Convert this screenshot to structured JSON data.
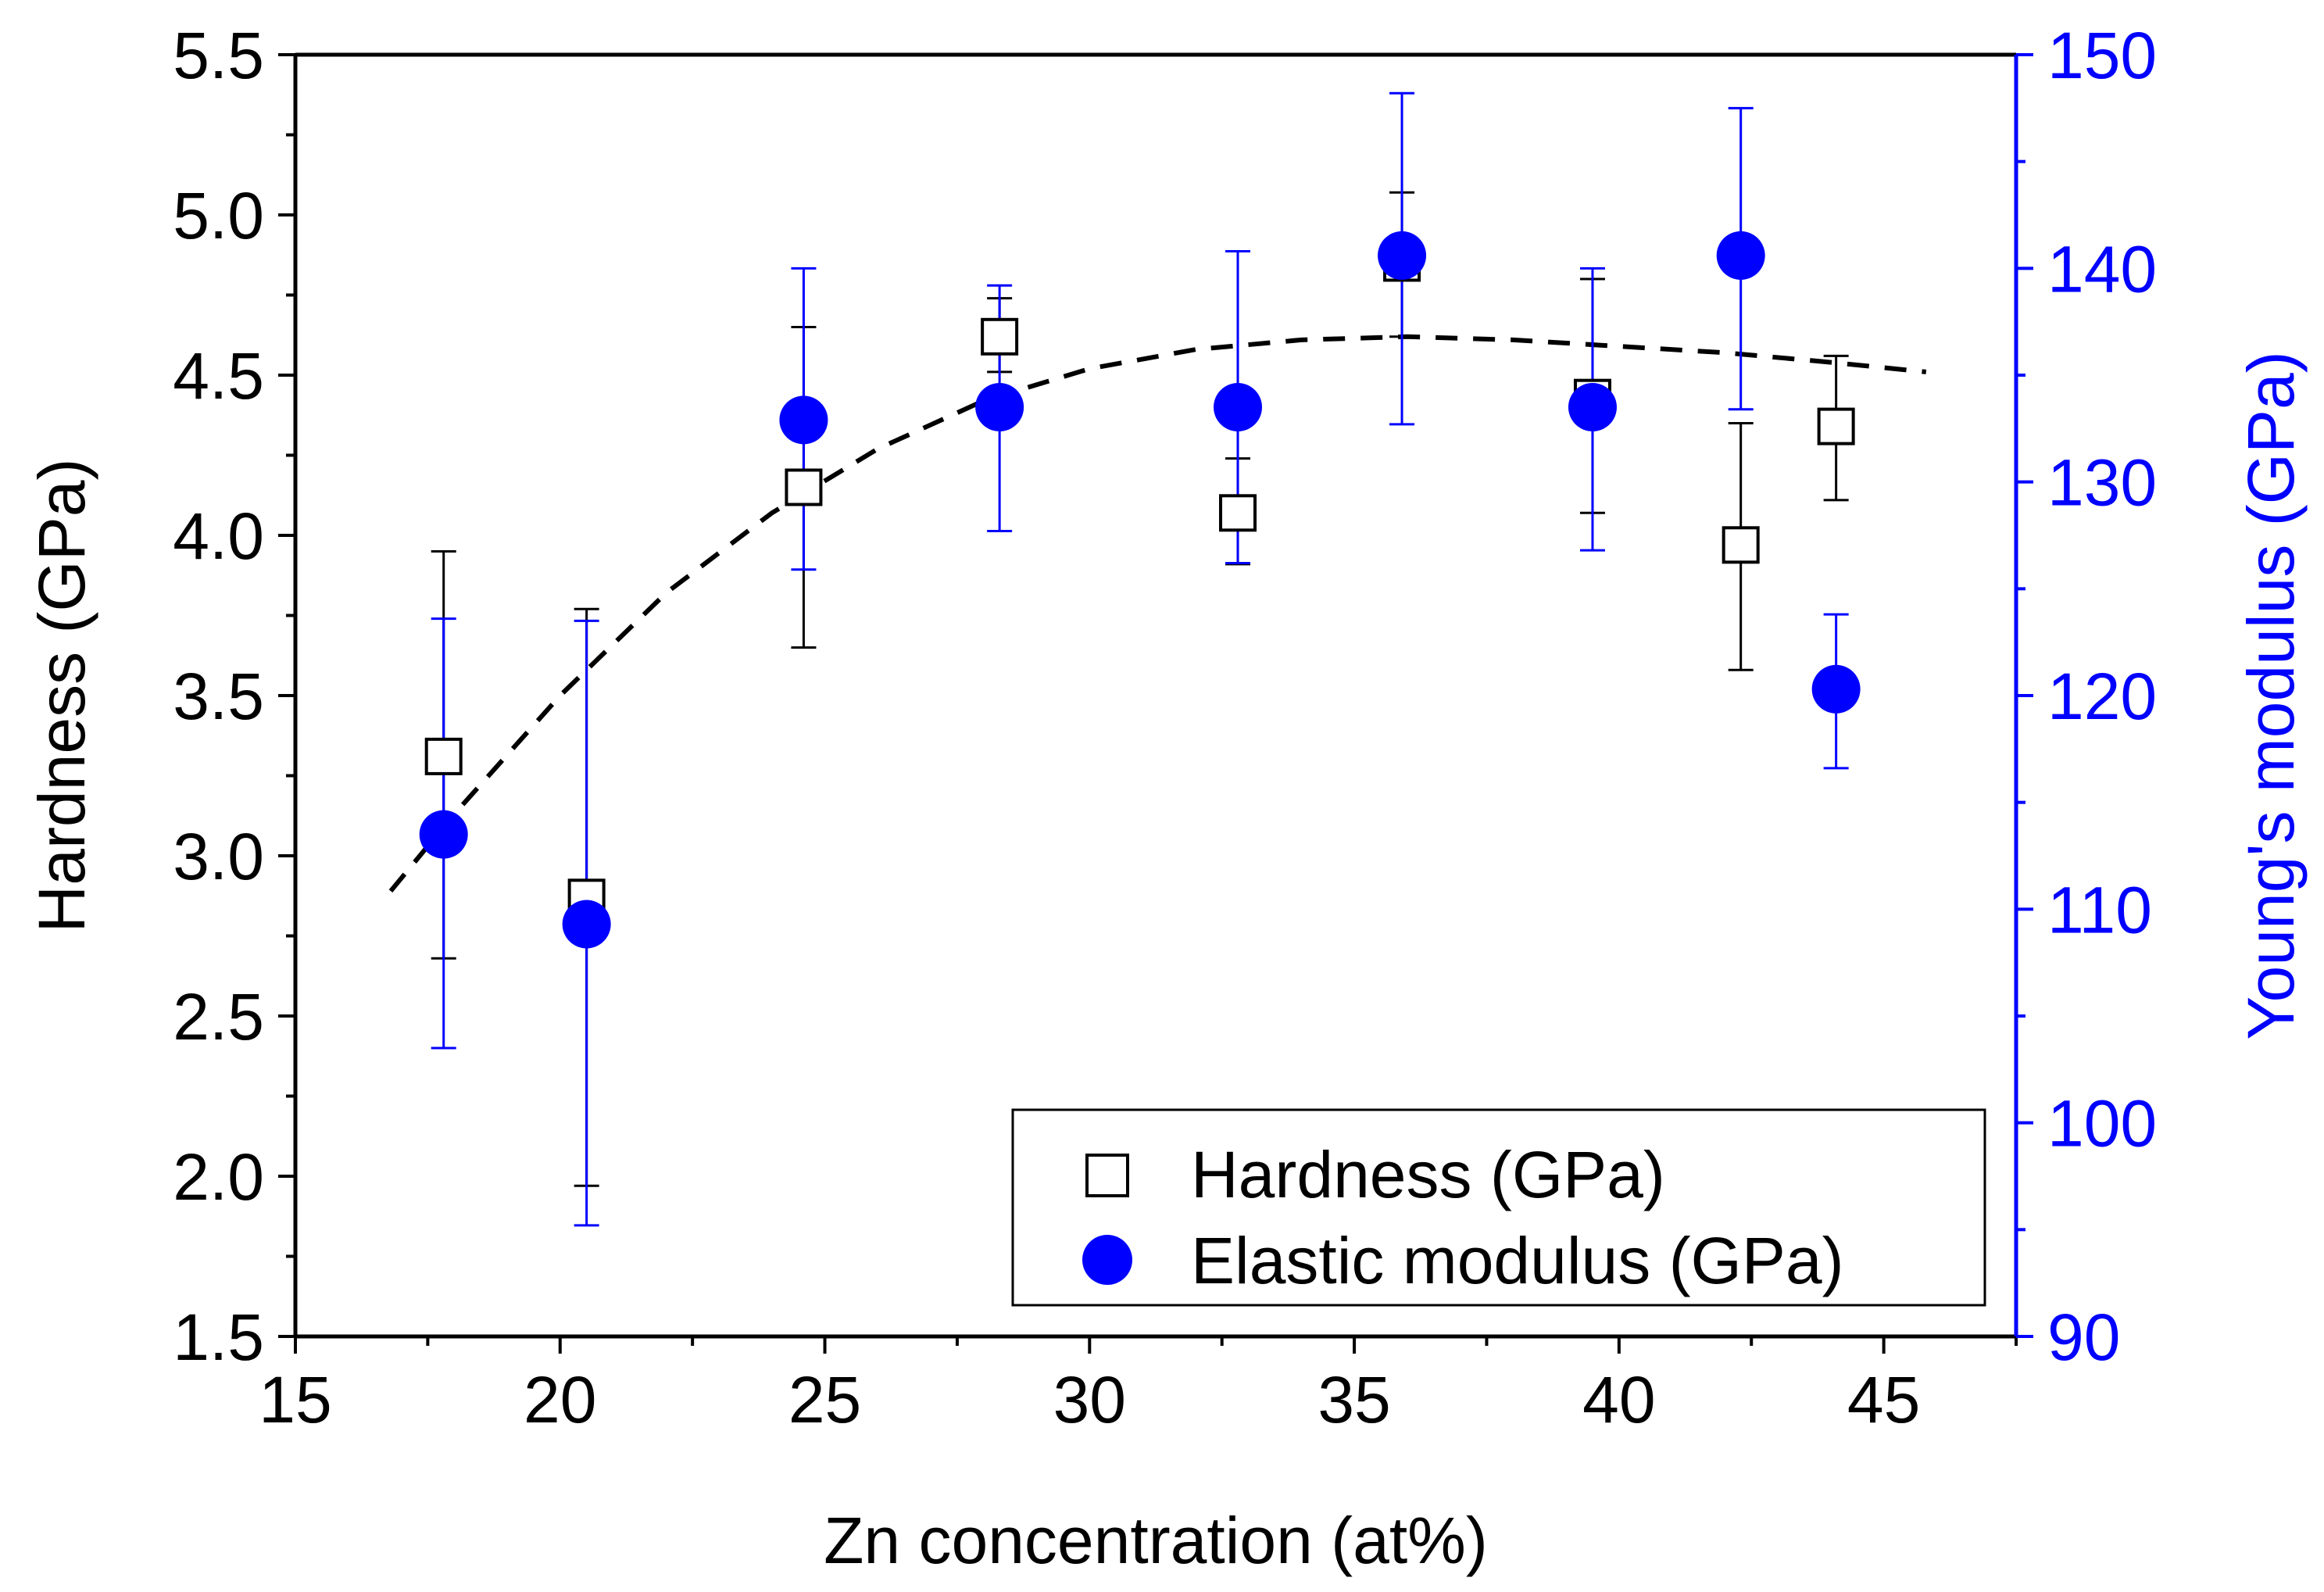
{
  "chart_data": {
    "type": "scatter",
    "x": [
      17.8,
      20.5,
      24.6,
      28.3,
      32.8,
      35.9,
      39.5,
      42.3,
      44.1
    ],
    "xlabel": "Zn concentration (at%)",
    "xlim": [
      15,
      47.5
    ],
    "xticks": [
      "15",
      "20",
      "25",
      "30",
      "35",
      "40",
      "45"
    ],
    "ylabel_left": "Hardness (GPa)",
    "ylim_left": [
      1.5,
      5.5
    ],
    "yticks_left": [
      "1.5",
      "2.0",
      "2.5",
      "3.0",
      "3.5",
      "4.0",
      "4.5",
      "5.0",
      "5.5"
    ],
    "ylabel_right": "Young's modulus (GPa)",
    "ylim_right": [
      90,
      150
    ],
    "yticks_right": [
      "90",
      "100",
      "110",
      "120",
      "130",
      "140",
      "150"
    ],
    "series": [
      {
        "name": "Hardness (GPa)",
        "axis": "left",
        "marker": "open-square",
        "color": "#000000",
        "values": [
          3.31,
          2.87,
          4.15,
          4.62,
          4.07,
          4.85,
          4.43,
          3.97,
          4.34
        ],
        "err_low": [
          2.68,
          1.97,
          3.65,
          4.51,
          3.91,
          4.62,
          4.07,
          3.58,
          4.11
        ],
        "err_high": [
          3.95,
          3.77,
          4.65,
          4.74,
          4.24,
          5.07,
          4.8,
          4.35,
          4.56
        ]
      },
      {
        "name": "Elastic modulus (GPa)",
        "axis": "right",
        "marker": "filled-circle",
        "color": "#0000ff",
        "values": [
          113.5,
          109.3,
          132.9,
          133.5,
          133.5,
          140.6,
          133.5,
          140.6,
          120.3
        ],
        "err_low": [
          103.5,
          95.2,
          125.9,
          127.7,
          126.2,
          132.7,
          126.8,
          133.4,
          116.6
        ],
        "err_high": [
          123.6,
          123.5,
          140.0,
          139.2,
          140.8,
          148.2,
          140.0,
          147.5,
          123.8
        ]
      }
    ],
    "fit": {
      "name": "trend",
      "style": "dashed",
      "color": "#000000",
      "x": [
        16.8,
        18,
        20,
        22,
        24,
        26,
        28,
        30,
        32,
        34,
        36,
        38,
        40,
        42,
        44,
        45.8
      ],
      "y": [
        2.89,
        3.13,
        3.5,
        3.82,
        4.07,
        4.27,
        4.42,
        4.52,
        4.58,
        4.61,
        4.62,
        4.61,
        4.59,
        4.57,
        4.54,
        4.51
      ]
    },
    "legend": {
      "position": "bottom-right",
      "entries": [
        "Hardness (GPa)",
        "Elastic modulus (GPa)"
      ]
    }
  }
}
